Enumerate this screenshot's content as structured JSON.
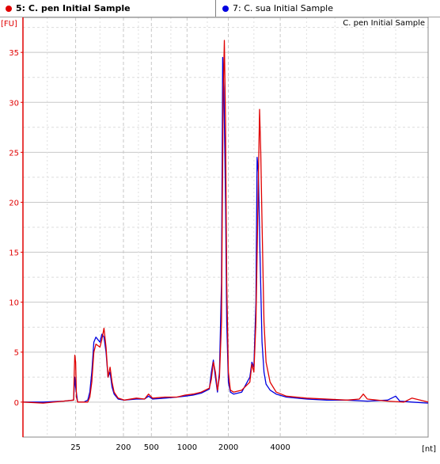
{
  "tabs": [
    {
      "label": "5: C. pen Initial Sample",
      "color": "#e00000",
      "active": true
    },
    {
      "label": "7: C. sua Initial Sample",
      "color": "#0000e0",
      "active": false
    }
  ],
  "chart_data": {
    "type": "line",
    "title": "C. pen Initial Sample",
    "ylabel": "[FU]",
    "xlabel": "[nt]",
    "ylim": [
      -3.5,
      38.5
    ],
    "yticks": [
      0,
      5,
      10,
      15,
      20,
      25,
      30,
      35
    ],
    "xticks": [
      {
        "label": "25",
        "pos": 0.13
      },
      {
        "label": "200",
        "pos": 0.248
      },
      {
        "label": "500",
        "pos": 0.317
      },
      {
        "label": "1000",
        "pos": 0.405
      },
      {
        "label": "2000",
        "pos": 0.507
      },
      {
        "label": "4000",
        "pos": 0.635
      }
    ],
    "grid": true,
    "series": [
      {
        "name": "5: C. pen Initial Sample",
        "color": "#e00000",
        "points": [
          [
            0,
            0.0
          ],
          [
            0.05,
            -0.1
          ],
          [
            0.1,
            0.1
          ],
          [
            0.125,
            0.2
          ],
          [
            0.126,
            2.0
          ],
          [
            0.128,
            4.7
          ],
          [
            0.13,
            4.0
          ],
          [
            0.132,
            0.5
          ],
          [
            0.135,
            0.0
          ],
          [
            0.15,
            0.0
          ],
          [
            0.16,
            0.0
          ],
          [
            0.165,
            0.5
          ],
          [
            0.17,
            2.0
          ],
          [
            0.175,
            5.0
          ],
          [
            0.18,
            5.8
          ],
          [
            0.19,
            5.5
          ],
          [
            0.195,
            6.3
          ],
          [
            0.2,
            7.4
          ],
          [
            0.205,
            5.5
          ],
          [
            0.21,
            2.5
          ],
          [
            0.215,
            3.5
          ],
          [
            0.22,
            2.0
          ],
          [
            0.225,
            1.0
          ],
          [
            0.235,
            0.4
          ],
          [
            0.25,
            0.2
          ],
          [
            0.28,
            0.4
          ],
          [
            0.3,
            0.3
          ],
          [
            0.31,
            0.8
          ],
          [
            0.32,
            0.4
          ],
          [
            0.35,
            0.5
          ],
          [
            0.38,
            0.5
          ],
          [
            0.4,
            0.7
          ],
          [
            0.42,
            0.8
          ],
          [
            0.44,
            1.0
          ],
          [
            0.46,
            1.4
          ],
          [
            0.465,
            2.3
          ],
          [
            0.47,
            4.0
          ],
          [
            0.475,
            3.0
          ],
          [
            0.48,
            1.2
          ],
          [
            0.485,
            2.5
          ],
          [
            0.49,
            8.0
          ],
          [
            0.494,
            30.0
          ],
          [
            0.497,
            36.2
          ],
          [
            0.5,
            28.0
          ],
          [
            0.503,
            12.0
          ],
          [
            0.507,
            3.0
          ],
          [
            0.512,
            1.2
          ],
          [
            0.52,
            1.0
          ],
          [
            0.54,
            1.2
          ],
          [
            0.56,
            2.0
          ],
          [
            0.565,
            3.8
          ],
          [
            0.57,
            3.0
          ],
          [
            0.575,
            8.0
          ],
          [
            0.58,
            20.0
          ],
          [
            0.584,
            29.3
          ],
          [
            0.587,
            25.0
          ],
          [
            0.59,
            18.0
          ],
          [
            0.595,
            8.0
          ],
          [
            0.6,
            4.0
          ],
          [
            0.61,
            2.0
          ],
          [
            0.625,
            1.0
          ],
          [
            0.65,
            0.6
          ],
          [
            0.7,
            0.4
          ],
          [
            0.75,
            0.3
          ],
          [
            0.8,
            0.2
          ],
          [
            0.83,
            0.3
          ],
          [
            0.84,
            0.8
          ],
          [
            0.85,
            0.3
          ],
          [
            0.9,
            0.1
          ],
          [
            0.94,
            0.0
          ],
          [
            0.96,
            0.4
          ],
          [
            1.0,
            0.0
          ]
        ]
      },
      {
        "name": "7: C. sua Initial Sample",
        "color": "#0000e0",
        "points": [
          [
            0,
            0.0
          ],
          [
            0.05,
            0.0
          ],
          [
            0.1,
            0.1
          ],
          [
            0.125,
            0.2
          ],
          [
            0.128,
            2.5
          ],
          [
            0.13,
            1.5
          ],
          [
            0.135,
            0.0
          ],
          [
            0.15,
            0.0
          ],
          [
            0.16,
            0.2
          ],
          [
            0.165,
            1.0
          ],
          [
            0.17,
            3.0
          ],
          [
            0.175,
            6.0
          ],
          [
            0.18,
            6.5
          ],
          [
            0.19,
            6.0
          ],
          [
            0.195,
            6.8
          ],
          [
            0.2,
            6.5
          ],
          [
            0.205,
            5.0
          ],
          [
            0.21,
            2.5
          ],
          [
            0.215,
            3.0
          ],
          [
            0.22,
            1.5
          ],
          [
            0.225,
            0.8
          ],
          [
            0.235,
            0.3
          ],
          [
            0.25,
            0.2
          ],
          [
            0.28,
            0.3
          ],
          [
            0.3,
            0.3
          ],
          [
            0.31,
            0.6
          ],
          [
            0.32,
            0.3
          ],
          [
            0.35,
            0.4
          ],
          [
            0.38,
            0.5
          ],
          [
            0.4,
            0.6
          ],
          [
            0.42,
            0.7
          ],
          [
            0.44,
            0.9
          ],
          [
            0.46,
            1.3
          ],
          [
            0.465,
            3.0
          ],
          [
            0.47,
            4.2
          ],
          [
            0.475,
            2.5
          ],
          [
            0.48,
            1.0
          ],
          [
            0.485,
            3.0
          ],
          [
            0.49,
            12.0
          ],
          [
            0.493,
            34.5
          ],
          [
            0.496,
            31.0
          ],
          [
            0.5,
            20.0
          ],
          [
            0.503,
            8.0
          ],
          [
            0.507,
            2.0
          ],
          [
            0.512,
            1.0
          ],
          [
            0.52,
            0.8
          ],
          [
            0.54,
            1.0
          ],
          [
            0.56,
            2.5
          ],
          [
            0.565,
            4.0
          ],
          [
            0.57,
            3.5
          ],
          [
            0.575,
            10.0
          ],
          [
            0.578,
            24.5
          ],
          [
            0.581,
            23.0
          ],
          [
            0.585,
            15.0
          ],
          [
            0.59,
            6.0
          ],
          [
            0.595,
            3.0
          ],
          [
            0.6,
            1.8
          ],
          [
            0.61,
            1.2
          ],
          [
            0.625,
            0.8
          ],
          [
            0.65,
            0.5
          ],
          [
            0.7,
            0.3
          ],
          [
            0.75,
            0.2
          ],
          [
            0.8,
            0.2
          ],
          [
            0.85,
            0.1
          ],
          [
            0.9,
            0.2
          ],
          [
            0.92,
            0.6
          ],
          [
            0.93,
            0.1
          ],
          [
            0.96,
            0.0
          ],
          [
            1.0,
            -0.1
          ]
        ]
      }
    ]
  }
}
